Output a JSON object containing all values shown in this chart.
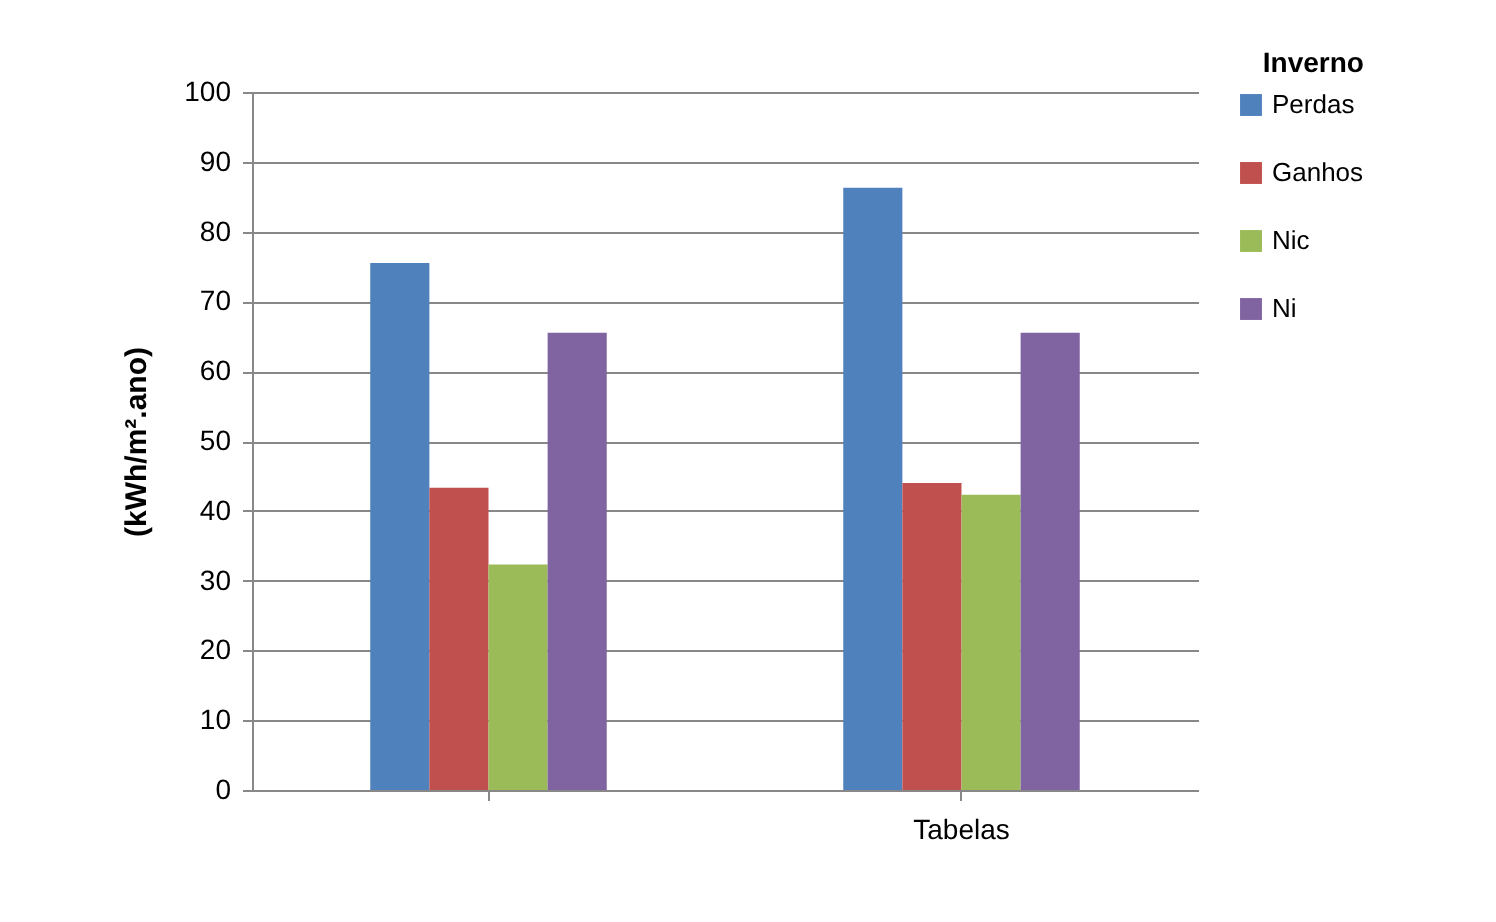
{
  "chart_data": {
    "type": "bar",
    "title": "Inverno",
    "ylabel": "(kWh/m².ano)",
    "categories": [
      null,
      "Tabelas"
    ],
    "series": [
      {
        "name": "Perdas",
        "color": "#4f81bd",
        "values": [
          75.5,
          86.3
        ]
      },
      {
        "name": "Ganhos",
        "color": "#c0504d",
        "values": [
          43.3,
          44
        ]
      },
      {
        "name": "Nic",
        "color": "#9bbb59",
        "values": [
          32.3,
          42.3
        ]
      },
      {
        "name": "Ni",
        "color": "#8064a2",
        "values": [
          65.5,
          65.5
        ]
      }
    ],
    "ylim": [
      0,
      100
    ],
    "yticks": [
      0,
      10,
      20,
      30,
      40,
      50,
      60,
      70,
      80,
      90,
      100
    ],
    "grid": "y",
    "legend": "right"
  }
}
